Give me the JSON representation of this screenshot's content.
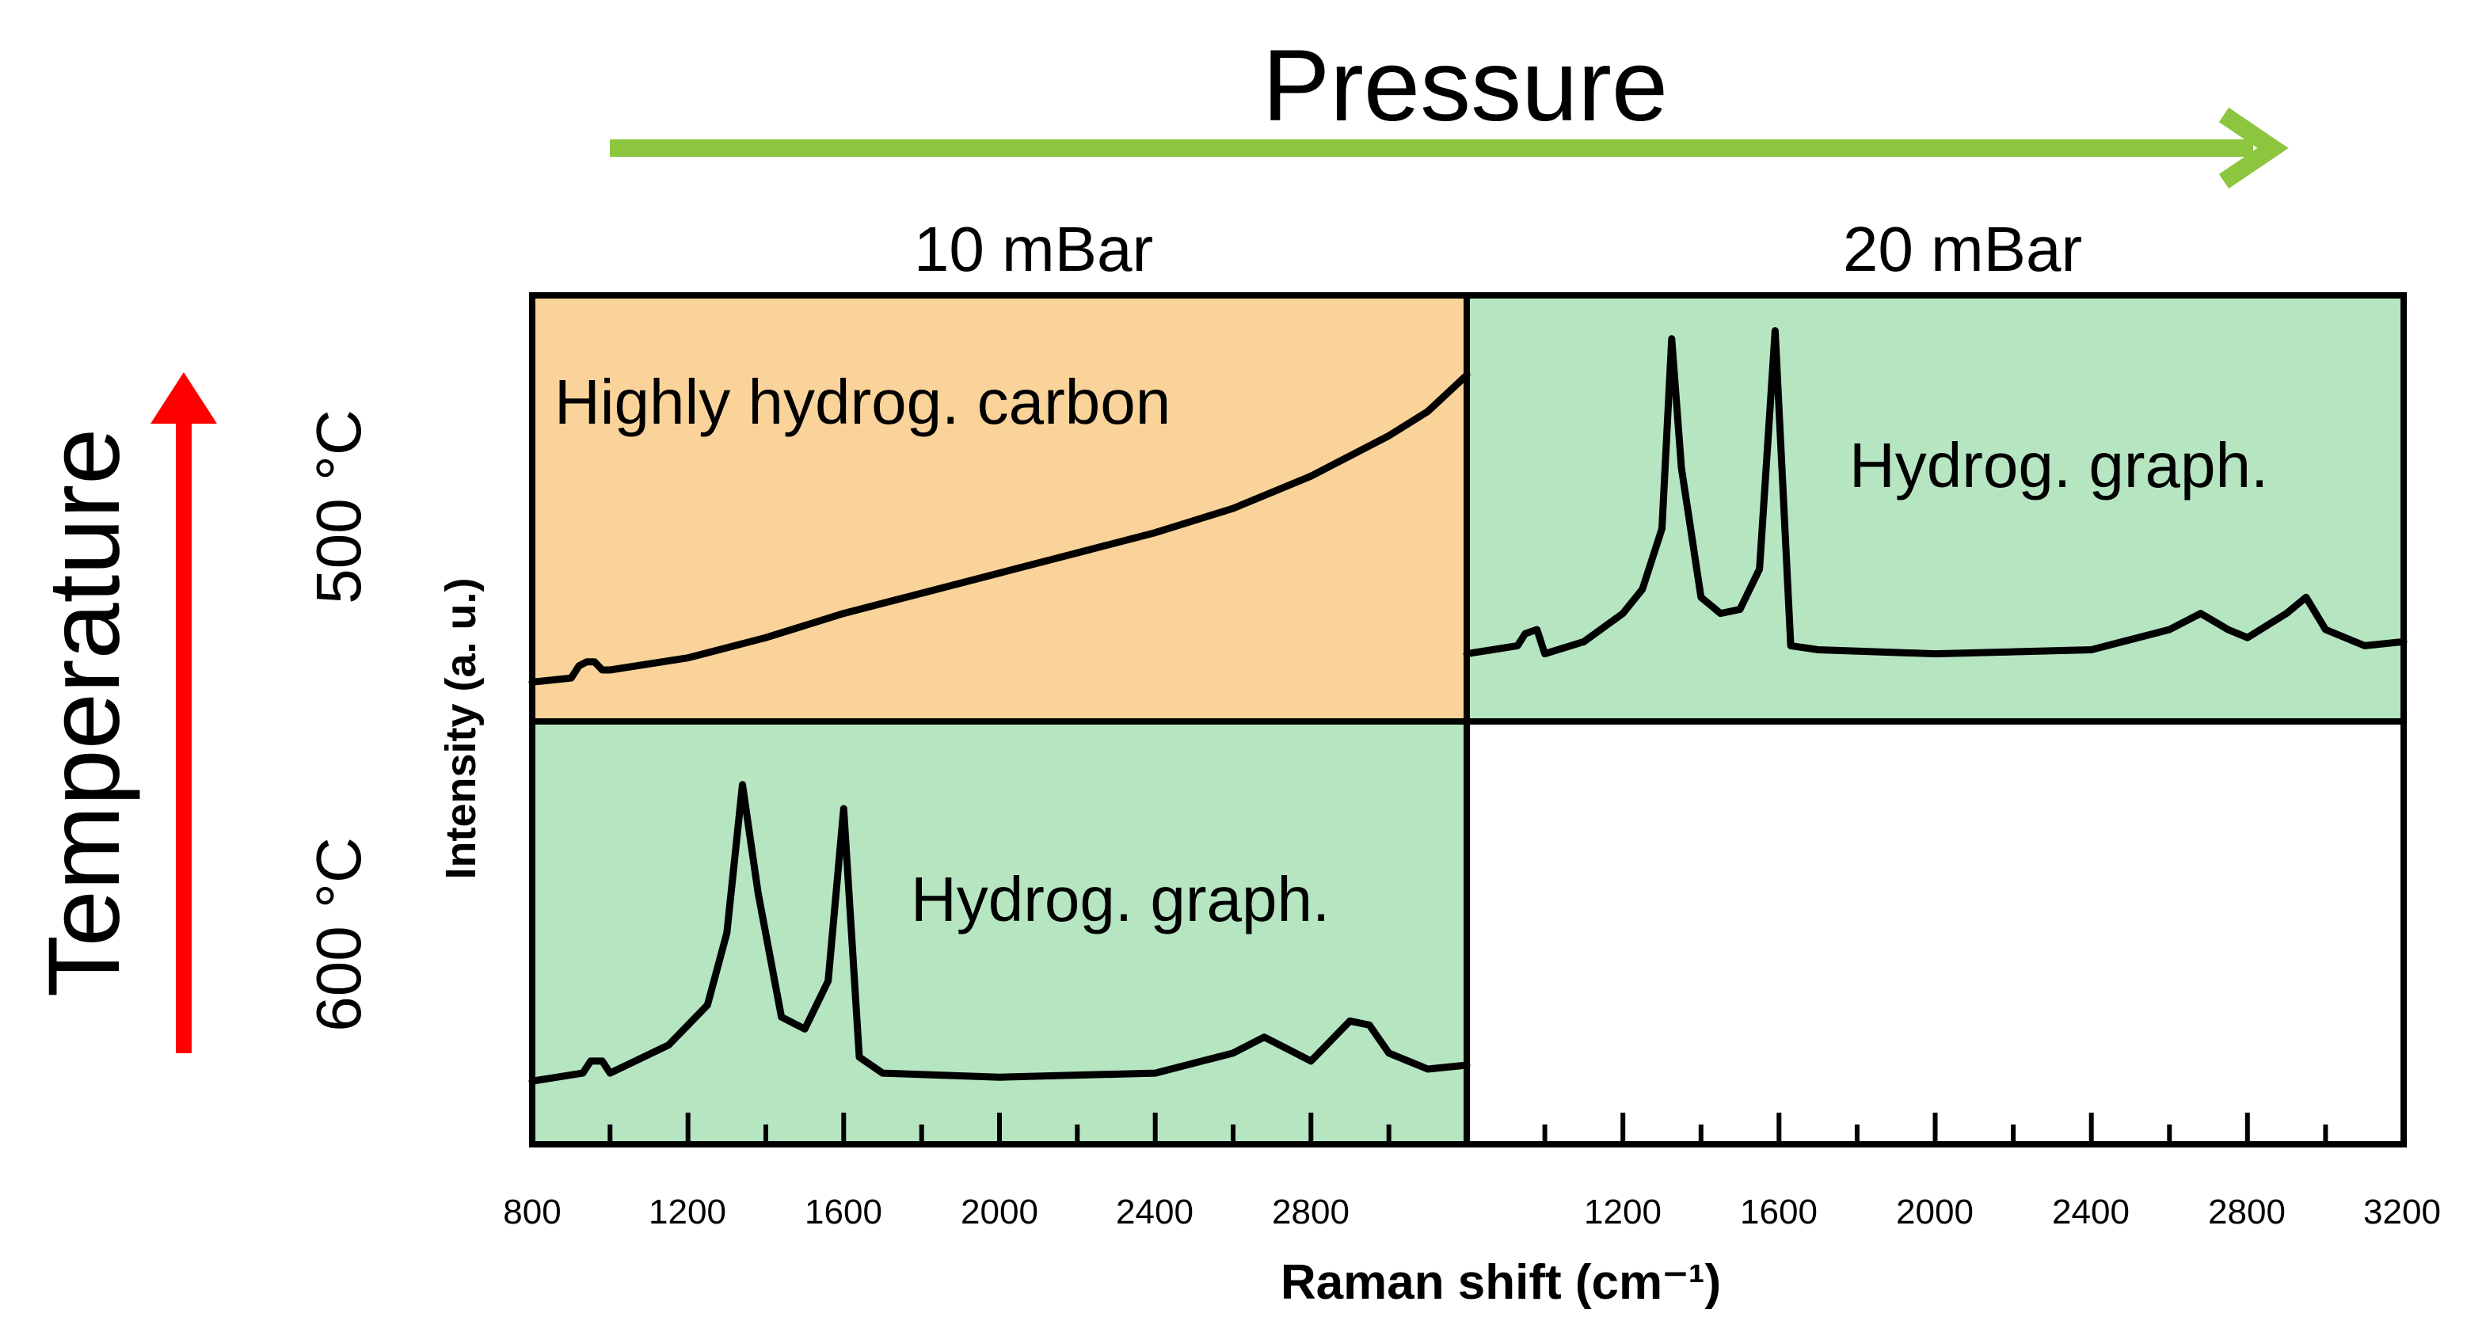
{
  "chart_data": {
    "type": "line",
    "title": "",
    "xlabel": "Raman shift (cm⁻¹)",
    "ylabel": "Intensity (a. u.)",
    "xlim": [
      800,
      3200
    ],
    "ylim": [
      0,
      1
    ],
    "x_axes": [
      {
        "ticks": [
          "800",
          "1200",
          "1600",
          "2000",
          "2400",
          "2800"
        ]
      },
      {
        "ticks": [
          "1200",
          "1600",
          "2000",
          "2400",
          "2800",
          "3200"
        ]
      }
    ],
    "pressure_label": "Pressure",
    "temperature_label": "Temperature",
    "pressures": [
      "10 mBar",
      "20 mBar"
    ],
    "temperatures": [
      "500 °C",
      "600 °C"
    ],
    "panels": [
      {
        "row": "500 °C",
        "col": "10 mBar",
        "label": "Highly hydrog. carbon",
        "fill": "#fad39a",
        "x": [
          800,
          900,
          920,
          940,
          960,
          980,
          1000,
          1200,
          1400,
          1600,
          1800,
          2000,
          2200,
          2400,
          2600,
          2800,
          3000,
          3100,
          3200
        ],
        "y": [
          0.07,
          0.08,
          0.11,
          0.12,
          0.12,
          0.1,
          0.1,
          0.13,
          0.18,
          0.24,
          0.29,
          0.34,
          0.39,
          0.44,
          0.5,
          0.58,
          0.68,
          0.74,
          0.83
        ]
      },
      {
        "row": "500 °C",
        "col": "20 mBar",
        "label": "Hydrog. graph.",
        "fill": "#b6e5c2",
        "x": [
          800,
          930,
          950,
          980,
          1000,
          1100,
          1200,
          1250,
          1300,
          1325,
          1350,
          1400,
          1450,
          1500,
          1550,
          1590,
          1630,
          1700,
          2000,
          2400,
          2600,
          2680,
          2750,
          2800,
          2900,
          2950,
          3000,
          3100,
          3200
        ],
        "y": [
          0.14,
          0.16,
          0.19,
          0.2,
          0.14,
          0.17,
          0.24,
          0.3,
          0.45,
          0.92,
          0.6,
          0.28,
          0.24,
          0.25,
          0.35,
          0.94,
          0.16,
          0.15,
          0.14,
          0.15,
          0.2,
          0.24,
          0.2,
          0.18,
          0.24,
          0.28,
          0.2,
          0.16,
          0.17
        ]
      },
      {
        "row": "600 °C",
        "col": "10 mBar",
        "label": "Hydrog. graph.",
        "fill": "#b6e5c2",
        "x": [
          800,
          930,
          950,
          980,
          1000,
          1150,
          1250,
          1300,
          1340,
          1380,
          1440,
          1500,
          1560,
          1600,
          1640,
          1700,
          2000,
          2400,
          2600,
          2680,
          2760,
          2800,
          2900,
          2950,
          3000,
          3100,
          3200
        ],
        "y": [
          0.13,
          0.15,
          0.18,
          0.18,
          0.15,
          0.22,
          0.32,
          0.5,
          0.87,
          0.6,
          0.29,
          0.26,
          0.38,
          0.81,
          0.19,
          0.15,
          0.14,
          0.15,
          0.2,
          0.24,
          0.2,
          0.18,
          0.28,
          0.27,
          0.2,
          0.16,
          0.17
        ]
      }
    ]
  },
  "colors": {
    "pressure_arrow": "#8cc63f",
    "temperature_arrow": "#ff0000",
    "orange_panel": "#fad39a",
    "green_panel": "#b6e5c2"
  }
}
